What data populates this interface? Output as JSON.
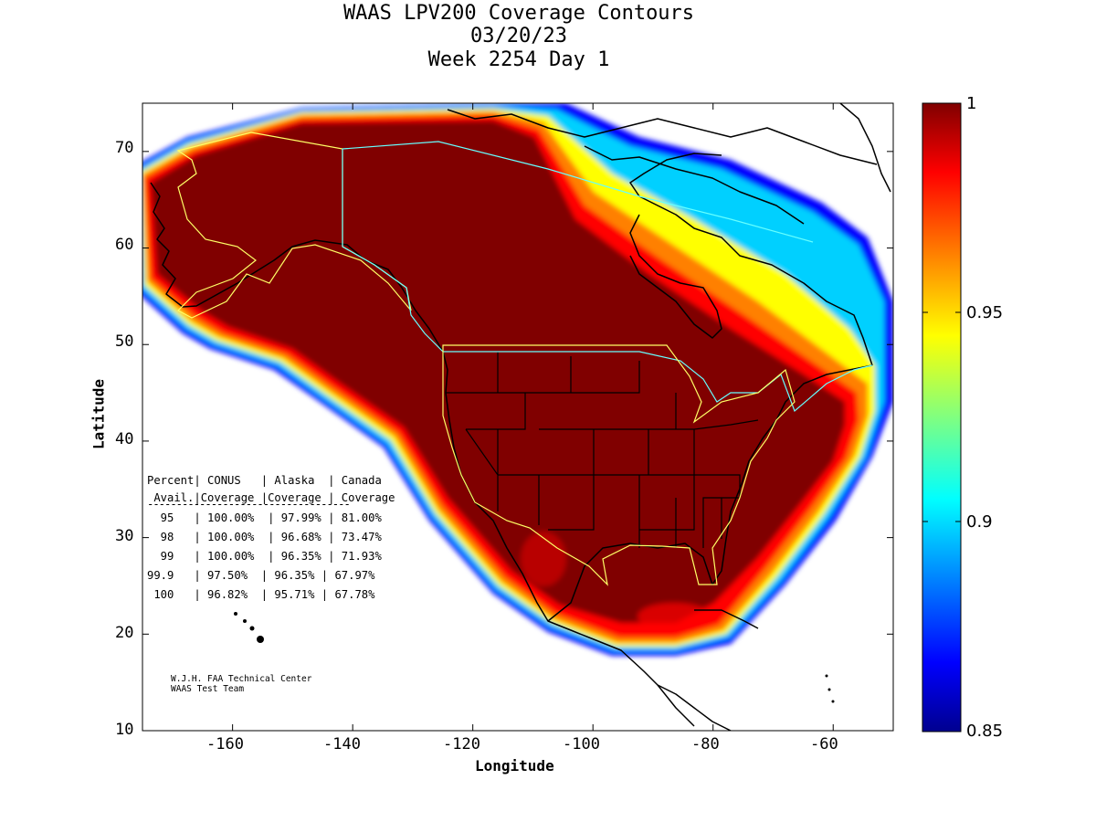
{
  "header": {
    "title_line1": "WAAS LPV200 Coverage Contours",
    "title_line2": "03/20/23",
    "title_line3": "Week 2254 Day 1"
  },
  "axes": {
    "xlabel": "Longitude",
    "ylabel": "Latitude",
    "x_ticks": [
      "-160",
      "-140",
      "-120",
      "-100",
      "-80",
      "-60"
    ],
    "y_ticks": [
      "70",
      "60",
      "50",
      "40",
      "30",
      "20",
      "10"
    ],
    "xlim": [
      -175,
      -50
    ],
    "ylim": [
      10,
      75
    ]
  },
  "colorbar": {
    "ticks": [
      "1",
      "0.95",
      "0.9",
      "0.85"
    ],
    "range": [
      0.85,
      1
    ],
    "colormap": "jet",
    "colors": [
      "#00008f",
      "#0000ff",
      "#0080ff",
      "#00ffff",
      "#80ff80",
      "#ffff00",
      "#ff8000",
      "#ff0000",
      "#800000"
    ]
  },
  "stats_table": {
    "header_row1": "Percent| CONUS   | Alaska  | Canada",
    "header_row2": " Avail.|Coverage |Coverage | Coverage",
    "rule": "-----------------------------------",
    "rows": [
      "  95   | 100.00%  | 97.99% | 81.00%",
      "  98   | 100.00%  | 96.68% | 73.47%",
      "  99   | 100.00%  | 96.35% | 71.93%",
      "99.9   | 97.50%  | 96.35% | 67.97%",
      " 100   | 96.82%  | 95.71% | 67.78%"
    ]
  },
  "credit": {
    "line1": "W.J.H. FAA Technical Center",
    "line2": "WAAS Test Team"
  },
  "chart_data": {
    "type": "heatmap",
    "title": "WAAS LPV200 Coverage Contours",
    "xlabel": "Longitude",
    "ylabel": "Latitude",
    "xlim": [
      -175,
      -50
    ],
    "ylim": [
      10,
      75
    ],
    "value_range": [
      0.85,
      1
    ],
    "coverage_table": {
      "columns": [
        "Percent Avail.",
        "CONUS Coverage",
        "Alaska Coverage",
        "Canada Coverage"
      ],
      "rows": [
        [
          "95",
          "100.00%",
          "97.99%",
          "81.00%"
        ],
        [
          "98",
          "100.00%",
          "96.68%",
          "73.47%"
        ],
        [
          "99",
          "100.00%",
          "96.35%",
          "71.93%"
        ],
        [
          "99.9",
          "97.50%",
          "96.35%",
          "67.97%"
        ],
        [
          "100",
          "96.82%",
          "95.71%",
          "67.78%"
        ]
      ]
    }
  }
}
